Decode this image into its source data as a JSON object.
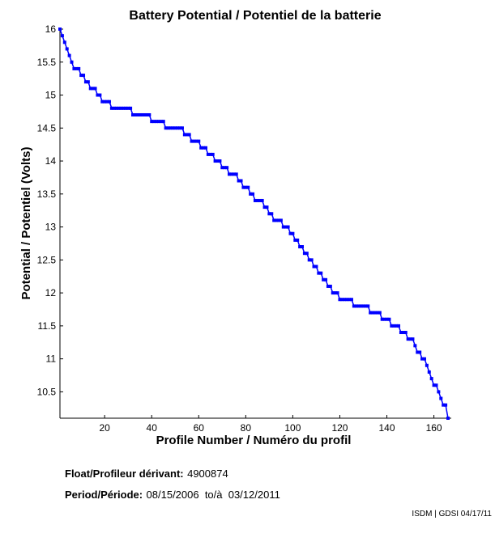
{
  "chart_data": {
    "type": "line",
    "title": "Battery Potential / Potentiel de la batterie",
    "xlabel": "Profile Number / Numéro du profil",
    "ylabel": "Potential / Potentiel (Volts)",
    "xlim": [
      1,
      166
    ],
    "ylim": [
      10.1,
      16
    ],
    "xticks": [
      20,
      40,
      60,
      80,
      100,
      120,
      140,
      160
    ],
    "yticks": [
      10.5,
      11,
      11.5,
      12,
      12.5,
      13,
      13.5,
      14,
      14.5,
      15,
      15.5,
      16
    ],
    "grid": false,
    "color": "#0000ff",
    "segments": [
      {
        "y": 16.0,
        "x_from": 1,
        "x_to": 1
      },
      {
        "y": 15.9,
        "x_from": 2,
        "x_to": 2
      },
      {
        "y": 15.8,
        "x_from": 3,
        "x_to": 3
      },
      {
        "y": 15.7,
        "x_from": 4,
        "x_to": 4
      },
      {
        "y": 15.6,
        "x_from": 5,
        "x_to": 5
      },
      {
        "y": 15.5,
        "x_from": 6,
        "x_to": 6
      },
      {
        "y": 15.4,
        "x_from": 7,
        "x_to": 9
      },
      {
        "y": 15.3,
        "x_from": 10,
        "x_to": 11
      },
      {
        "y": 15.2,
        "x_from": 12,
        "x_to": 13
      },
      {
        "y": 15.1,
        "x_from": 14,
        "x_to": 16
      },
      {
        "y": 15.0,
        "x_from": 17,
        "x_to": 18
      },
      {
        "y": 14.9,
        "x_from": 19,
        "x_to": 22
      },
      {
        "y": 14.8,
        "x_from": 23,
        "x_to": 31
      },
      {
        "y": 14.7,
        "x_from": 32,
        "x_to": 39
      },
      {
        "y": 14.6,
        "x_from": 40,
        "x_to": 45
      },
      {
        "y": 14.5,
        "x_from": 46,
        "x_to": 53
      },
      {
        "y": 14.4,
        "x_from": 54,
        "x_to": 56
      },
      {
        "y": 14.3,
        "x_from": 57,
        "x_to": 60
      },
      {
        "y": 14.2,
        "x_from": 61,
        "x_to": 63
      },
      {
        "y": 14.1,
        "x_from": 64,
        "x_to": 66
      },
      {
        "y": 14.0,
        "x_from": 67,
        "x_to": 69
      },
      {
        "y": 13.9,
        "x_from": 70,
        "x_to": 72
      },
      {
        "y": 13.8,
        "x_from": 73,
        "x_to": 76
      },
      {
        "y": 13.7,
        "x_from": 77,
        "x_to": 78
      },
      {
        "y": 13.6,
        "x_from": 79,
        "x_to": 81
      },
      {
        "y": 13.5,
        "x_from": 82,
        "x_to": 83
      },
      {
        "y": 13.4,
        "x_from": 84,
        "x_to": 87
      },
      {
        "y": 13.3,
        "x_from": 88,
        "x_to": 89
      },
      {
        "y": 13.2,
        "x_from": 90,
        "x_to": 91
      },
      {
        "y": 13.1,
        "x_from": 92,
        "x_to": 95
      },
      {
        "y": 13.0,
        "x_from": 96,
        "x_to": 98
      },
      {
        "y": 12.9,
        "x_from": 99,
        "x_to": 100
      },
      {
        "y": 12.8,
        "x_from": 101,
        "x_to": 102
      },
      {
        "y": 12.7,
        "x_from": 103,
        "x_to": 104
      },
      {
        "y": 12.6,
        "x_from": 105,
        "x_to": 106
      },
      {
        "y": 12.5,
        "x_from": 107,
        "x_to": 108
      },
      {
        "y": 12.4,
        "x_from": 109,
        "x_to": 110
      },
      {
        "y": 12.3,
        "x_from": 111,
        "x_to": 112
      },
      {
        "y": 12.2,
        "x_from": 113,
        "x_to": 114
      },
      {
        "y": 12.1,
        "x_from": 115,
        "x_to": 116
      },
      {
        "y": 12.0,
        "x_from": 117,
        "x_to": 119
      },
      {
        "y": 11.9,
        "x_from": 120,
        "x_to": 125
      },
      {
        "y": 11.8,
        "x_from": 126,
        "x_to": 132
      },
      {
        "y": 11.7,
        "x_from": 133,
        "x_to": 137
      },
      {
        "y": 11.6,
        "x_from": 138,
        "x_to": 141
      },
      {
        "y": 11.5,
        "x_from": 142,
        "x_to": 145
      },
      {
        "y": 11.4,
        "x_from": 146,
        "x_to": 148
      },
      {
        "y": 11.3,
        "x_from": 149,
        "x_to": 151
      },
      {
        "y": 11.2,
        "x_from": 152,
        "x_to": 152
      },
      {
        "y": 11.1,
        "x_from": 153,
        "x_to": 154
      },
      {
        "y": 11.0,
        "x_from": 155,
        "x_to": 156
      },
      {
        "y": 10.9,
        "x_from": 157,
        "x_to": 157
      },
      {
        "y": 10.8,
        "x_from": 158,
        "x_to": 158
      },
      {
        "y": 10.7,
        "x_from": 159,
        "x_to": 159
      },
      {
        "y": 10.6,
        "x_from": 160,
        "x_to": 161
      },
      {
        "y": 10.5,
        "x_from": 162,
        "x_to": 162
      },
      {
        "y": 10.4,
        "x_from": 163,
        "x_to": 163
      },
      {
        "y": 10.3,
        "x_from": 164,
        "x_to": 165
      },
      {
        "y": 10.1,
        "x_from": 166,
        "x_to": 166
      }
    ]
  },
  "info": {
    "float_label": "Float/Profileur dérivant:",
    "float_value": "4900874",
    "period_label": "Period/Période:",
    "period_value": "08/15/2006  to/à  03/12/2011",
    "credit": "ISDM | GDSI 04/17/11"
  }
}
